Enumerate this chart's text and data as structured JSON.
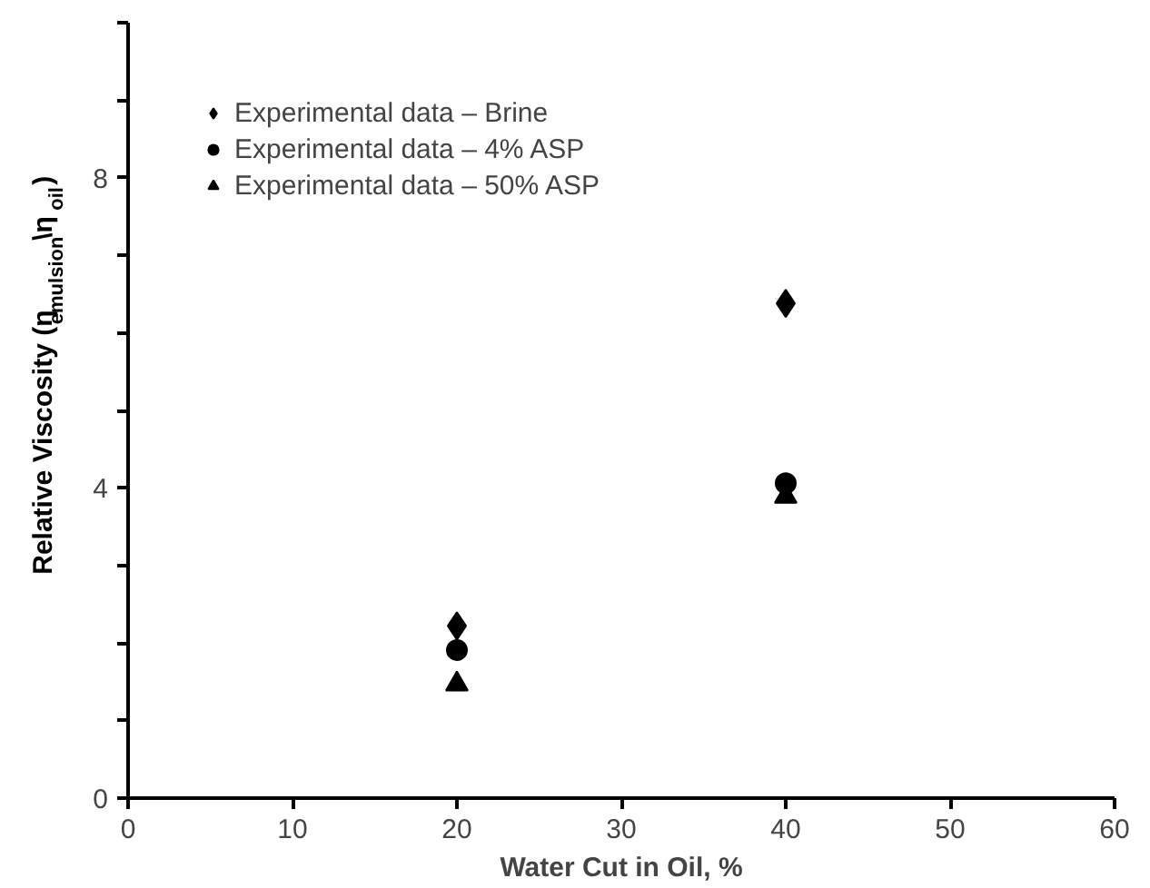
{
  "chart_data": {
    "type": "scatter",
    "xlabel": "Water Cut in Oil, %",
    "ylabel": "Relative Viscosity (η$_{emulsion}$\\η$_{oil}$)",
    "xlim": [
      0,
      60
    ],
    "xticks": [
      0,
      10,
      20,
      30,
      40,
      50,
      60
    ],
    "ylim": [
      0,
      10
    ],
    "yticks": [
      0,
      {
        "value": 1,
        "label": null
      },
      {
        "value": 2,
        "label": null
      },
      {
        "value": 3,
        "label": null
      },
      4,
      {
        "value": 5,
        "label": null
      },
      {
        "value": 6,
        "label": null
      },
      {
        "value": 7,
        "label": null
      },
      8,
      {
        "value": 9,
        "label": null
      },
      {
        "value": 10,
        "label": null
      }
    ],
    "grid": false,
    "legend": "top left",
    "x": [
      20,
      40
    ],
    "series": [
      {
        "name": "Experimental data – Brine",
        "color": "#000000",
        "marker": "diamond",
        "values": [
          2.22,
          6.38
        ]
      },
      {
        "name": "Experimental data – 4% ASP",
        "color": "#000000",
        "marker": "circle",
        "values": [
          1.91,
          4.06
        ]
      },
      {
        "name": "Experimental data – 50% ASP",
        "color": "#000000",
        "marker": "triangle",
        "values": [
          1.47,
          3.89
        ]
      }
    ]
  }
}
